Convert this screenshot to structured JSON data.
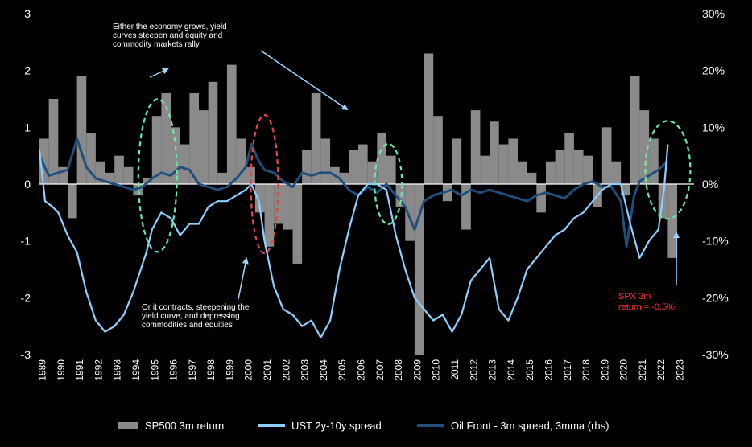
{
  "chart_data": {
    "type": "bar+line",
    "years": [
      "1989",
      "1990",
      "1991",
      "1992",
      "1993",
      "1994",
      "1995",
      "1996",
      "1997",
      "1998",
      "1999",
      "2000",
      "2001",
      "2002",
      "2003",
      "2004",
      "2005",
      "2006",
      "2007",
      "2008",
      "2009",
      "2010",
      "2011",
      "2012",
      "2013",
      "2014",
      "2015",
      "2016",
      "2017",
      "2018",
      "2019",
      "2020",
      "2021",
      "2022",
      "2023"
    ],
    "left_axis": {
      "ticks": [
        "3",
        "2",
        "1",
        "0",
        "-1",
        "-2",
        "-3"
      ],
      "range": [
        -3,
        3
      ]
    },
    "right_axis": {
      "ticks": [
        "30%",
        "20%",
        "10%",
        "0%",
        "-10%",
        "-20%",
        "-30%"
      ],
      "range": [
        -30,
        30
      ]
    },
    "series": [
      {
        "name": "SP500 3m return",
        "type": "bar",
        "axis": "left",
        "color": "#8a8a8a",
        "x": [
          1989.0,
          1989.5,
          1990.0,
          1990.5,
          1991.0,
          1991.5,
          1992.0,
          1992.5,
          1993.0,
          1993.5,
          1994.0,
          1994.5,
          1995.0,
          1995.5,
          1996.0,
          1996.5,
          1997.0,
          1997.5,
          1998.0,
          1998.5,
          1999.0,
          1999.5,
          2000.0,
          2000.5,
          2001.0,
          2001.5,
          2002.0,
          2002.5,
          2003.0,
          2003.5,
          2004.0,
          2004.5,
          2005.0,
          2005.5,
          2006.0,
          2006.5,
          2007.0,
          2007.5,
          2008.0,
          2008.5,
          2009.0,
          2009.5,
          2010.0,
          2010.5,
          2011.0,
          2011.5,
          2012.0,
          2012.5,
          2013.0,
          2013.5,
          2014.0,
          2014.5,
          2015.0,
          2015.5,
          2016.0,
          2016.5,
          2017.0,
          2017.5,
          2018.0,
          2018.5,
          2019.0,
          2019.5,
          2020.0,
          2020.5,
          2021.0,
          2021.5,
          2022.0,
          2022.5
        ],
        "values": [
          0.8,
          1.5,
          0.3,
          -0.6,
          1.9,
          0.9,
          0.4,
          0.2,
          0.5,
          0.3,
          -0.2,
          0.1,
          1.2,
          1.6,
          1.0,
          0.7,
          1.6,
          1.3,
          1.8,
          0.2,
          2.1,
          0.8,
          0.3,
          -0.5,
          -1.1,
          -0.7,
          -0.8,
          -1.4,
          0.6,
          1.6,
          0.8,
          0.3,
          0.2,
          0.6,
          0.7,
          0.4,
          0.9,
          0.5,
          -0.4,
          -1.0,
          -3.0,
          2.3,
          1.2,
          -0.3,
          0.8,
          -0.8,
          1.3,
          0.5,
          1.1,
          0.7,
          0.8,
          0.4,
          0.2,
          -0.5,
          0.4,
          0.6,
          0.9,
          0.6,
          0.5,
          -0.4,
          1.0,
          0.4,
          -0.2,
          1.9,
          1.3,
          0.8,
          -0.6,
          -1.3
        ]
      },
      {
        "name": "UST 2y-10y spread",
        "type": "line",
        "axis": "left",
        "color": "#8fcfff",
        "x": [
          1989.0,
          1989.3,
          1989.7,
          1990.0,
          1990.5,
          1991.0,
          1991.5,
          1992.0,
          1992.5,
          1993.0,
          1993.5,
          1994.0,
          1994.3,
          1994.7,
          1995.0,
          1995.5,
          1996.0,
          1996.5,
          1997.0,
          1997.5,
          1998.0,
          1998.5,
          1999.0,
          1999.5,
          2000.0,
          2000.3,
          2000.7,
          2001.0,
          2001.5,
          2002.0,
          2002.5,
          2003.0,
          2003.5,
          2004.0,
          2004.5,
          2005.0,
          2005.5,
          2006.0,
          2006.5,
          2007.0,
          2007.5,
          2008.0,
          2008.5,
          2009.0,
          2009.5,
          2010.0,
          2010.5,
          2011.0,
          2011.5,
          2012.0,
          2012.5,
          2013.0,
          2013.5,
          2014.0,
          2014.5,
          2015.0,
          2015.5,
          2016.0,
          2016.5,
          2017.0,
          2017.5,
          2018.0,
          2018.5,
          2019.0,
          2019.5,
          2020.0,
          2020.5,
          2021.0,
          2021.5,
          2022.0,
          2022.3,
          2022.5
        ],
        "values": [
          0.6,
          -0.3,
          -0.4,
          -0.5,
          -0.9,
          -1.2,
          -1.9,
          -2.4,
          -2.6,
          -2.5,
          -2.3,
          -1.9,
          -1.6,
          -1.2,
          -0.8,
          -0.5,
          -0.6,
          -0.9,
          -0.7,
          -0.7,
          -0.4,
          -0.3,
          -0.3,
          -0.2,
          -0.1,
          0.0,
          -0.3,
          -1.0,
          -1.8,
          -2.2,
          -2.3,
          -2.5,
          -2.4,
          -2.7,
          -2.4,
          -1.5,
          -0.8,
          -0.2,
          0.0,
          0.0,
          -0.1,
          -0.9,
          -1.5,
          -2.0,
          -2.2,
          -2.4,
          -2.3,
          -2.6,
          -2.3,
          -1.7,
          -1.5,
          -1.3,
          -2.2,
          -2.4,
          -2.0,
          -1.5,
          -1.3,
          -1.1,
          -0.9,
          -0.8,
          -0.6,
          -0.5,
          -0.3,
          -0.1,
          0.0,
          0.0,
          -0.7,
          -1.3,
          -1.0,
          -0.8,
          -0.1,
          0.7
        ]
      },
      {
        "name": "Oil Front - 3m spread, 3mma (rhs)",
        "type": "line",
        "axis": "right",
        "color": "#1f4f7a",
        "x": [
          1989.0,
          1989.5,
          1990.0,
          1990.5,
          1991.0,
          1991.5,
          1992.0,
          1992.5,
          1993.0,
          1993.5,
          1994.0,
          1994.5,
          1995.0,
          1995.5,
          1996.0,
          1996.5,
          1997.0,
          1997.5,
          1998.0,
          1998.5,
          1999.0,
          1999.5,
          2000.0,
          2000.3,
          2000.7,
          2001.0,
          2001.5,
          2002.0,
          2002.5,
          2003.0,
          2003.5,
          2004.0,
          2004.5,
          2005.0,
          2005.5,
          2006.0,
          2006.5,
          2007.0,
          2007.5,
          2008.0,
          2008.5,
          2009.0,
          2009.5,
          2010.0,
          2010.5,
          2011.0,
          2011.5,
          2012.0,
          2012.5,
          2013.0,
          2013.5,
          2014.0,
          2014.5,
          2015.0,
          2015.5,
          2016.0,
          2016.5,
          2017.0,
          2017.5,
          2018.0,
          2018.5,
          2019.0,
          2019.5,
          2020.0,
          2020.3,
          2020.7,
          2021.0,
          2021.5,
          2022.0,
          2022.3,
          2022.5
        ],
        "values": [
          5.0,
          1.5,
          2.0,
          2.5,
          8.0,
          3.0,
          1.0,
          0.5,
          0.0,
          -0.5,
          -1.0,
          -0.5,
          1.0,
          2.0,
          1.5,
          3.0,
          2.5,
          0.0,
          -0.5,
          -1.0,
          -0.5,
          1.0,
          3.0,
          7.0,
          4.0,
          2.5,
          2.0,
          0.5,
          -0.5,
          2.0,
          1.5,
          2.0,
          2.0,
          1.0,
          -1.0,
          -2.0,
          -0.5,
          -1.5,
          0.0,
          -2.0,
          -4.0,
          -8.0,
          -3.0,
          -2.0,
          -1.5,
          -1.0,
          -2.0,
          -1.0,
          -1.5,
          -1.0,
          -1.5,
          -2.0,
          -2.5,
          -3.0,
          -2.0,
          -1.5,
          -2.0,
          -2.5,
          -1.0,
          0.0,
          0.5,
          -0.5,
          -0.5,
          -3.0,
          -11.0,
          -2.0,
          0.5,
          1.5,
          2.5,
          3.5,
          4.0
        ]
      }
    ],
    "legend": {
      "position": "bottom",
      "entries": [
        "SP500 3m return",
        "UST 2y-10y spread",
        "Oil Front - 3m spread, 3mma (rhs)"
      ]
    },
    "annotations": {
      "top": "Either the economy grows, yield\ncurves steepen and equity and\ncommodity markets rally",
      "bottom": "Or it contracts, steepening the\nyield curve, and depressing\ncommodities and equities",
      "spx": "SPX 3m\nreturn = -0.5%"
    }
  }
}
